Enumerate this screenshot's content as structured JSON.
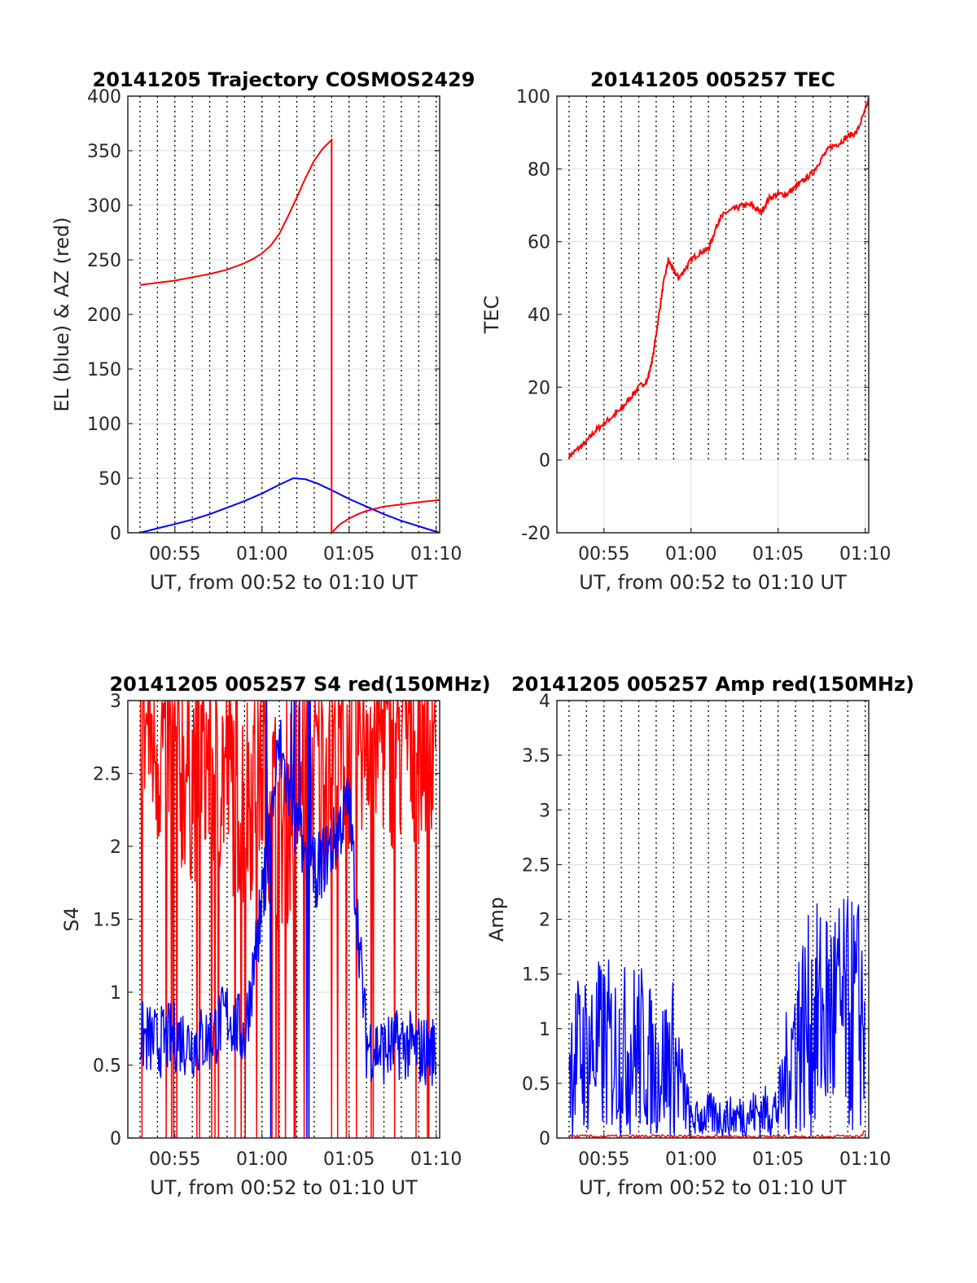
{
  "chart_data": [
    {
      "type": "line",
      "title": "20141205 Trajectory COSMOS2429",
      "xlabel": "UT, from 00:52 to 01:10 UT",
      "ylabel": "EL (blue) & AZ (red)",
      "xlim_minutes": [
        52.3,
        70.2
      ],
      "ylim": [
        0,
        400
      ],
      "yticks": [
        "0",
        "50",
        "100",
        "150",
        "200",
        "250",
        "300",
        "350",
        "400"
      ],
      "xticks": [
        {
          "t": 55,
          "label": "00:55"
        },
        {
          "t": 60,
          "label": "01:00"
        },
        {
          "t": 65,
          "label": "01:05"
        },
        {
          "t": 70,
          "label": "01:10"
        }
      ],
      "series": [
        {
          "color": "#0000ff",
          "x": [
            53.0,
            54.0,
            55.0,
            56.0,
            57.0,
            58.0,
            59.0,
            60.0,
            61.0,
            61.8,
            62.5,
            63.2,
            64.0,
            65.0,
            66.0,
            67.0,
            68.0,
            69.0,
            70.2
          ],
          "y": [
            0,
            4,
            8,
            12,
            17,
            23,
            29,
            36,
            44,
            50,
            49,
            45,
            39,
            31,
            24,
            17,
            11,
            6,
            0
          ]
        },
        {
          "color": "#ff0000",
          "x": [
            53.0,
            54.0,
            55.0,
            56.0,
            57.0,
            58.0,
            59.0,
            59.5,
            60.0,
            60.5,
            61.0,
            61.5,
            62.0,
            62.5,
            63.0,
            63.5,
            64.0,
            64.0,
            64.5,
            65.0,
            65.5,
            66.0,
            67.0,
            68.0,
            69.0,
            70.2
          ],
          "y": [
            227,
            229,
            231,
            234,
            237,
            241,
            247,
            251,
            256,
            263,
            274,
            290,
            307,
            325,
            341,
            352,
            360,
            0,
            8,
            13,
            17,
            20,
            24,
            26,
            28,
            30
          ]
        }
      ]
    },
    {
      "type": "line",
      "title": "20141205 005257 TEC",
      "xlabel": "UT, from 00:52 to 01:10 UT",
      "ylabel": "TEC",
      "xlim_minutes": [
        52.3,
        70.2
      ],
      "ylim": [
        -20,
        100
      ],
      "yticks": [
        "-20",
        "0",
        "20",
        "40",
        "60",
        "80",
        "100"
      ],
      "xticks": [
        {
          "t": 55,
          "label": "00:55"
        },
        {
          "t": 60,
          "label": "01:00"
        },
        {
          "t": 65,
          "label": "01:05"
        },
        {
          "t": 70,
          "label": "01:10"
        }
      ],
      "series": [
        {
          "color": "#ff0000",
          "x": [
            53.0,
            53.5,
            54.0,
            54.5,
            55.0,
            55.5,
            56.0,
            56.5,
            57.0,
            57.5,
            57.8,
            58.1,
            58.4,
            58.7,
            59.0,
            59.3,
            59.6,
            60.0,
            60.5,
            61.0,
            61.3,
            61.6,
            62.0,
            62.5,
            63.0,
            63.5,
            64.0,
            64.5,
            65.0,
            65.5,
            66.0,
            66.5,
            67.0,
            67.5,
            68.0,
            68.5,
            69.0,
            69.5,
            70.0,
            70.2
          ],
          "y": [
            1,
            3,
            5,
            8,
            10,
            12,
            14,
            17,
            20,
            22,
            28,
            38,
            48,
            55,
            52,
            50,
            52,
            55,
            57,
            58,
            62,
            66,
            68,
            69,
            70,
            70,
            68,
            72,
            73,
            73,
            75,
            77,
            79,
            83,
            86,
            87,
            89,
            90,
            96,
            99
          ]
        }
      ]
    },
    {
      "type": "line",
      "title": "20141205 005257 S4 red(150MHz)",
      "xlabel": "UT, from 00:52 to 01:10 UT",
      "ylabel": "S4",
      "xlim_minutes": [
        52.3,
        70.2
      ],
      "ylim": [
        0,
        3
      ],
      "yticks": [
        "0",
        "0.5",
        "1",
        "1.5",
        "2",
        "2.5",
        "3"
      ],
      "xticks": [
        {
          "t": 55,
          "label": "00:55"
        },
        {
          "t": 60,
          "label": "01:00"
        },
        {
          "t": 65,
          "label": "01:05"
        },
        {
          "t": 70,
          "label": "01:10"
        }
      ],
      "series": [
        {
          "color": "#ff0000",
          "x": [
            53,
            54,
            55,
            56,
            57,
            58,
            59,
            60,
            61,
            62,
            63,
            64,
            65,
            66,
            67,
            68,
            69,
            70
          ],
          "y": [
            2.6,
            2.4,
            2.3,
            2.2,
            2.3,
            2.2,
            2.0,
            2.3,
            1.8,
            2.1,
            2.2,
            2.3,
            2.4,
            2.6,
            2.5,
            2.4,
            2.5,
            2.6
          ]
        },
        {
          "color": "#0000ff",
          "x": [
            53,
            54,
            55,
            56,
            57,
            58,
            59,
            60,
            61,
            62,
            63,
            64,
            65,
            66,
            67,
            68,
            69,
            70
          ],
          "y": [
            0.6,
            0.55,
            0.6,
            0.55,
            0.58,
            0.75,
            0.6,
            1.5,
            2.6,
            2.0,
            1.7,
            1.9,
            2.2,
            0.55,
            0.5,
            0.55,
            0.5,
            0.5
          ]
        }
      ]
    },
    {
      "type": "line",
      "title": "20141205 005257 Amp red(150MHz)",
      "xlabel": "UT, from 00:52 to 01:10 UT",
      "ylabel": "Amp",
      "xlim_minutes": [
        52.3,
        70.2
      ],
      "ylim": [
        0,
        4
      ],
      "yticks": [
        "0",
        "0.5",
        "1",
        "1.5",
        "2",
        "2.5",
        "3",
        "3.5",
        "4"
      ],
      "xticks": [
        {
          "t": 55,
          "label": "00:55"
        },
        {
          "t": 60,
          "label": "01:00"
        },
        {
          "t": 65,
          "label": "01:05"
        },
        {
          "t": 70,
          "label": "01:10"
        }
      ],
      "series": [
        {
          "color": "#0000ff",
          "x": [
            53,
            54,
            55,
            56,
            57,
            58,
            59,
            60,
            61,
            62,
            63,
            64,
            65,
            66,
            67,
            68,
            69,
            70
          ],
          "y": [
            1.4,
            1.5,
            1.6,
            1.5,
            1.6,
            1.2,
            1.4,
            0.3,
            0.4,
            0.35,
            0.4,
            0.45,
            0.5,
            1.8,
            2.0,
            2.2,
            2.1,
            2.2
          ]
        },
        {
          "color": "#ff0000",
          "x": [
            53,
            70
          ],
          "y": [
            0.01,
            0.01
          ]
        }
      ]
    }
  ]
}
